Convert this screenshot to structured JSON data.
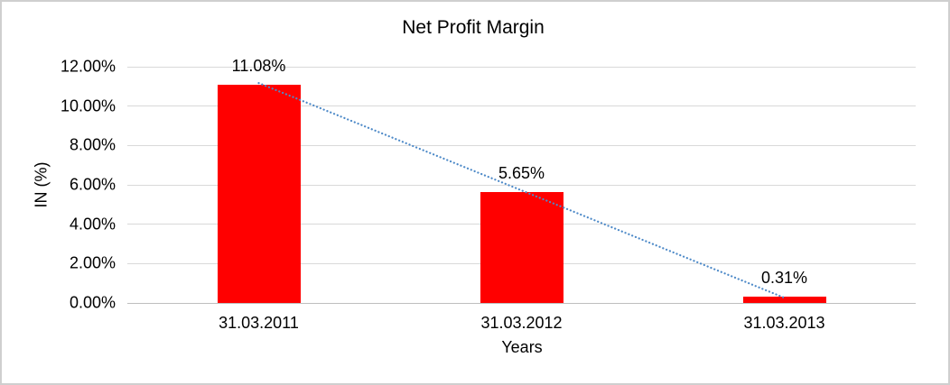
{
  "chart_data": {
    "type": "bar",
    "title": "Net Profit Margin",
    "xlabel": "Years",
    "ylabel": "IN (%)",
    "categories": [
      "31.03.2011",
      "31.03.2012",
      "31.03.2013"
    ],
    "values": [
      11.08,
      5.65,
      0.31
    ],
    "data_labels": [
      "11.08%",
      "5.65%",
      "0.31%"
    ],
    "y_ticks": [
      "12.00%",
      "10.00%",
      "8.00%",
      "6.00%",
      "4.00%",
      "2.00%",
      "0.00%"
    ],
    "ylim": [
      0,
      12
    ],
    "y_tick_step": 2,
    "grid": true,
    "legend": false,
    "bar_color": "#FF0000",
    "gridline_color": "#D9D9D9",
    "axis_line_color": "#BFBFBF",
    "text_color": "#000000",
    "frame_color": "#CFCFCF",
    "background": "#FFFFFF",
    "trendline": {
      "type": "linear",
      "style": "dotted",
      "color": "#4E8AC8",
      "from_value": 11.08,
      "to_value": 0.31
    }
  }
}
